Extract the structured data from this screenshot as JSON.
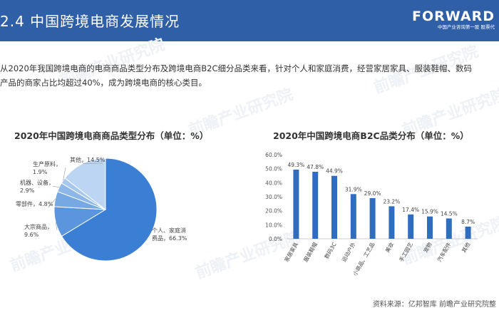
{
  "header": {
    "title": "2.4  中国跨境电商发展情况",
    "brand": "FORWARD",
    "brand_sub": "中国产业咨询第一股  股票代"
  },
  "intro": {
    "line1": "从2020年我国跨境电商的电商商品类型分布及跨境电商B2C细分品类来看，针对个人和家庭消费，经营家居家具、服装鞋帽、数码",
    "line2": "产品的商家占比均超过40%，成为跨境电商的核心类目。"
  },
  "chart_data": [
    {
      "type": "pie",
      "title": "2020年中国跨境电商商品类型分布（单位：%）",
      "categories": [
        "个人、家庭消费品",
        "大宗商品",
        "零部件",
        "机器、设备",
        "生产原料",
        "其他"
      ],
      "values": [
        66.3,
        9.6,
        4.8,
        2.9,
        1.9,
        14.5
      ],
      "labels": [
        "个人、家庭消\n费品，66.3%",
        "大宗商品，\n9.6%",
        "零部件，4.8%",
        "机器、设备，\n2.9%",
        "生产原料，\n1.9%",
        "其他，14.5%"
      ],
      "colors": [
        "#3b7fd4",
        "#5b95dd",
        "#76a8e4",
        "#8eb7e9",
        "#a7c8ee",
        "#bcd5f2"
      ]
    },
    {
      "type": "bar",
      "title": "2020年中国跨境电商B2C品类分布（单位：%）",
      "categories": [
        "家居家具",
        "服装鞋帽",
        "数码3C",
        "运动户外",
        "小商品、工艺品",
        "美妆",
        "手工园艺",
        "宠物",
        "汽车配件",
        "其他"
      ],
      "values": [
        49.3,
        47.8,
        44.9,
        31.9,
        29.0,
        23.2,
        17.4,
        15.9,
        14.5,
        8.7
      ],
      "value_labels": [
        "49.3%",
        "47.8%",
        "44.9%",
        "31.9%",
        "29.0%",
        "23.2%",
        "17.4%",
        "15.9%",
        "14.5%",
        "8.7%"
      ],
      "ylim": [
        0,
        60
      ],
      "yticks": [
        "0.0%",
        "10.0%",
        "20.0%",
        "30.0%",
        "40.0%",
        "50.0%",
        "60.0%"
      ],
      "color": "#2f6dbf"
    }
  ],
  "source": "资料来源：亿邦智库  前瞻产业研究院整"
}
